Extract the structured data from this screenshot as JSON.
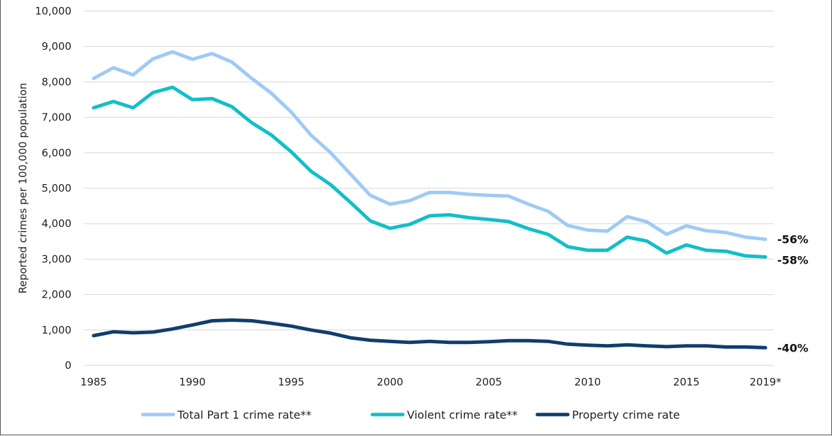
{
  "chart_data": {
    "type": "line",
    "title": "",
    "xlabel": "",
    "ylabel": "Reported crimes per 100,000 population",
    "ylim": [
      0,
      10000
    ],
    "xlim": [
      1985,
      2019
    ],
    "yticks": [
      "0",
      "1,000",
      "2,000",
      "3,000",
      "4,000",
      "5,000",
      "6,000",
      "7,000",
      "8,000",
      "9,000",
      "10,000"
    ],
    "ytick_values": [
      0,
      1000,
      2000,
      3000,
      4000,
      5000,
      6000,
      7000,
      8000,
      9000,
      10000
    ],
    "xticks": [
      "1985",
      "1990",
      "1995",
      "2000",
      "2005",
      "2010",
      "2015",
      "2019*"
    ],
    "xtick_values": [
      1985,
      1990,
      1995,
      2000,
      2005,
      2010,
      2015,
      2019
    ],
    "grid": "horizontal",
    "legend_position": "bottom",
    "x": [
      1985,
      1986,
      1987,
      1988,
      1989,
      1990,
      1991,
      1992,
      1993,
      1994,
      1995,
      1996,
      1997,
      1998,
      1999,
      2000,
      2001,
      2002,
      2003,
      2004,
      2005,
      2006,
      2007,
      2008,
      2009,
      2010,
      2011,
      2012,
      2013,
      2014,
      2015,
      2016,
      2017,
      2018,
      2019
    ],
    "series": [
      {
        "name": "Total Part 1 crime rate**",
        "color": "#9ecbf5",
        "end_label": "-56%",
        "values": [
          8100,
          8400,
          8200,
          8650,
          8850,
          8640,
          8800,
          8560,
          8100,
          7680,
          7150,
          6500,
          6000,
          5400,
          4800,
          4550,
          4650,
          4880,
          4880,
          4830,
          4800,
          4780,
          4550,
          4350,
          3950,
          3820,
          3790,
          4200,
          4050,
          3700,
          3940,
          3800,
          3750,
          3620,
          3560
        ]
      },
      {
        "name": "Violent crime rate**",
        "color": "#12bfc7",
        "end_label": "-58%",
        "values": [
          7270,
          7450,
          7270,
          7700,
          7850,
          7500,
          7530,
          7300,
          6850,
          6500,
          6030,
          5480,
          5100,
          4600,
          4080,
          3870,
          3980,
          4220,
          4250,
          4170,
          4120,
          4060,
          3860,
          3700,
          3350,
          3250,
          3250,
          3620,
          3510,
          3170,
          3400,
          3250,
          3220,
          3090,
          3060
        ]
      },
      {
        "name": "Property crime rate",
        "color": "#0f3e6e",
        "end_label": "-40%",
        "values": [
          840,
          950,
          920,
          940,
          1030,
          1140,
          1260,
          1280,
          1260,
          1190,
          1110,
          1000,
          910,
          780,
          710,
          680,
          650,
          680,
          650,
          650,
          670,
          700,
          700,
          680,
          600,
          570,
          550,
          580,
          550,
          530,
          550,
          550,
          520,
          520,
          500
        ]
      }
    ]
  }
}
